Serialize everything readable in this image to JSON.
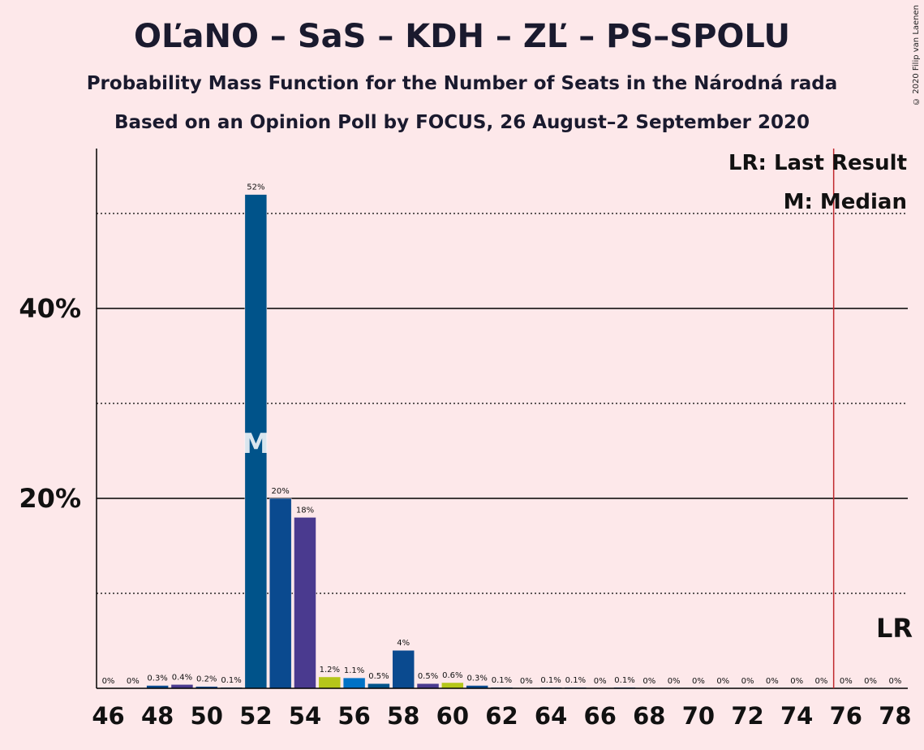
{
  "title": "OĽaNO – SaS – KDH – ZĽ – PS–SPOLU",
  "subtitle1": "Probability Mass Function for the Number of Seats in the Národná rada",
  "subtitle2": "Based on an Opinion Poll by FOCUS, 26 August–2 September 2020",
  "copyright": "© 2020 Filip van Laenen",
  "legend": {
    "last_result": "LR: Last Result",
    "median": "M: Median"
  },
  "markers": {
    "median_label": "M",
    "last_result_label": "LR"
  },
  "colors": {
    "background": "#FDE8EA",
    "bars": [
      "#00538A",
      "#0A4A8F",
      "#4A3A8F",
      "#B5C61A",
      "#0072C6"
    ],
    "last_result_line": "#C0282D"
  },
  "chart_data": {
    "type": "bar",
    "x": [
      46,
      47,
      48,
      49,
      50,
      51,
      52,
      53,
      54,
      55,
      56,
      57,
      58,
      59,
      60,
      61,
      62,
      63,
      64,
      65,
      66,
      67,
      68,
      69,
      70,
      71,
      72,
      73,
      74,
      75,
      76,
      77,
      78
    ],
    "values": [
      0,
      0,
      0.3,
      0.4,
      0.2,
      0.1,
      52,
      20,
      18,
      1.2,
      1.1,
      0.5,
      4,
      0.5,
      0.6,
      0.3,
      0.1,
      0,
      0.1,
      0.1,
      0,
      0.1,
      0,
      0,
      0,
      0,
      0,
      0,
      0,
      0,
      0,
      0,
      0
    ],
    "value_labels": [
      "0%",
      "0%",
      "0.3%",
      "0.4%",
      "0.2%",
      "0.1%",
      "52%",
      "20%",
      "18%",
      "1.2%",
      "1.1%",
      "0.5%",
      "4%",
      "0.5%",
      "0.6%",
      "0.3%",
      "0.1%",
      "0%",
      "0.1%",
      "0.1%",
      "0%",
      "0.1%",
      "0%",
      "0%",
      "0%",
      "0%",
      "0%",
      "0%",
      "0%",
      "0%",
      "0%",
      "0%",
      "0%"
    ],
    "bar_colors": [
      "#00538A",
      "#00538A",
      "#0A4A8F",
      "#4A3A8F",
      "#0A4A8F",
      "#0A4A8F",
      "#00538A",
      "#0A4A8F",
      "#4A3A8F",
      "#B5C61A",
      "#0072C6",
      "#00538A",
      "#0A4A8F",
      "#4A3A8F",
      "#B5C61A",
      "#0A4A8F",
      "#0A4A8F",
      "#0A4A8F",
      "#0A4A8F",
      "#0A4A8F",
      "#0A4A8F",
      "#0A4A8F",
      "#0A4A8F",
      "#0A4A8F",
      "#0A4A8F",
      "#0A4A8F",
      "#0A4A8F",
      "#0A4A8F",
      "#0A4A8F",
      "#0A4A8F",
      "#0A4A8F",
      "#0A4A8F",
      "#0A4A8F"
    ],
    "x_tick_labels": [
      "46",
      "48",
      "50",
      "52",
      "54",
      "56",
      "58",
      "60",
      "62",
      "64",
      "66",
      "68",
      "70",
      "72",
      "74",
      "76",
      "78"
    ],
    "y_tick_labels": [
      "20%",
      "40%"
    ],
    "y_ticks": [
      20,
      40
    ],
    "y_gridlines_dotted": [
      10,
      30,
      50
    ],
    "ylim": [
      0,
      57
    ],
    "median": 52,
    "last_result": 75.5
  }
}
